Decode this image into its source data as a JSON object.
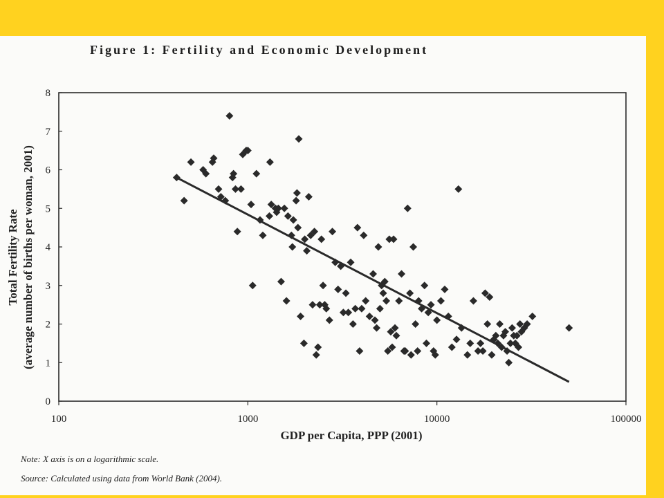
{
  "figure": {
    "title": "Figure 1: Fertility and Economic Development",
    "note": "Note: X axis is on a logarithmic scale.",
    "source": "Source: Calculated using data from World Bank (2004)."
  },
  "colors": {
    "frame_background": "#ffd21f",
    "page_background": "#fbfbf9",
    "marker": "#2a2a2a",
    "trend_line": "#2a2a2a"
  },
  "chart_data": {
    "type": "scatter",
    "title": "",
    "xlabel": "GDP per Capita, PPP (2001)",
    "ylabel_line1": "Total Fertility Rate",
    "ylabel_line2": "(average number of births per woman, 2001)",
    "x_scale": "log",
    "xlim": [
      100,
      100000
    ],
    "ylim": [
      0,
      8
    ],
    "x_ticks": [
      100,
      1000,
      10000,
      100000
    ],
    "x_tick_labels": [
      "100",
      "1000",
      "10000",
      "100000"
    ],
    "y_ticks": [
      0,
      1,
      2,
      3,
      4,
      5,
      6,
      7,
      8
    ],
    "y_tick_labels": [
      "0",
      "1",
      "2",
      "3",
      "4",
      "5",
      "6",
      "7",
      "8"
    ],
    "grid": false,
    "legend": "none",
    "marker": "diamond",
    "points": [
      [
        420,
        5.8
      ],
      [
        460,
        5.2
      ],
      [
        500,
        6.2
      ],
      [
        580,
        6.0
      ],
      [
        600,
        5.9
      ],
      [
        650,
        6.2
      ],
      [
        660,
        6.3
      ],
      [
        700,
        5.5
      ],
      [
        720,
        5.3
      ],
      [
        760,
        5.2
      ],
      [
        800,
        7.4
      ],
      [
        830,
        5.8
      ],
      [
        840,
        5.9
      ],
      [
        860,
        5.5
      ],
      [
        880,
        4.4
      ],
      [
        920,
        5.5
      ],
      [
        940,
        6.4
      ],
      [
        980,
        6.5
      ],
      [
        1000,
        6.5
      ],
      [
        1040,
        5.1
      ],
      [
        1060,
        3.0
      ],
      [
        1110,
        5.9
      ],
      [
        1160,
        4.7
      ],
      [
        1200,
        4.3
      ],
      [
        1300,
        4.8
      ],
      [
        1310,
        6.2
      ],
      [
        1330,
        5.1
      ],
      [
        1400,
        5.0
      ],
      [
        1420,
        4.9
      ],
      [
        1450,
        5.0
      ],
      [
        1500,
        3.1
      ],
      [
        1560,
        5.0
      ],
      [
        1600,
        2.6
      ],
      [
        1630,
        4.8
      ],
      [
        1700,
        4.3
      ],
      [
        1720,
        4.0
      ],
      [
        1740,
        4.7
      ],
      [
        1800,
        5.2
      ],
      [
        1820,
        5.4
      ],
      [
        1840,
        4.5
      ],
      [
        1860,
        6.8
      ],
      [
        1900,
        2.2
      ],
      [
        1980,
        1.5
      ],
      [
        2000,
        4.2
      ],
      [
        2050,
        3.9
      ],
      [
        2100,
        5.3
      ],
      [
        2150,
        4.3
      ],
      [
        2200,
        2.5
      ],
      [
        2250,
        4.4
      ],
      [
        2300,
        1.2
      ],
      [
        2350,
        1.4
      ],
      [
        2400,
        2.5
      ],
      [
        2450,
        4.2
      ],
      [
        2500,
        3.0
      ],
      [
        2550,
        2.5
      ],
      [
        2600,
        2.4
      ],
      [
        2700,
        2.1
      ],
      [
        2800,
        4.4
      ],
      [
        2900,
        3.6
      ],
      [
        3000,
        2.9
      ],
      [
        3100,
        3.5
      ],
      [
        3200,
        2.3
      ],
      [
        3300,
        2.8
      ],
      [
        3400,
        2.3
      ],
      [
        3500,
        3.6
      ],
      [
        3600,
        2.0
      ],
      [
        3700,
        2.4
      ],
      [
        3800,
        4.5
      ],
      [
        3900,
        1.3
      ],
      [
        4000,
        2.4
      ],
      [
        4100,
        4.3
      ],
      [
        4200,
        2.6
      ],
      [
        4400,
        2.2
      ],
      [
        4600,
        3.3
      ],
      [
        4700,
        2.1
      ],
      [
        4800,
        1.9
      ],
      [
        4900,
        4.0
      ],
      [
        5000,
        2.4
      ],
      [
        5100,
        3.0
      ],
      [
        5200,
        2.8
      ],
      [
        5300,
        3.1
      ],
      [
        5400,
        2.6
      ],
      [
        5500,
        1.3
      ],
      [
        5600,
        4.2
      ],
      [
        5700,
        1.8
      ],
      [
        5800,
        1.4
      ],
      [
        5900,
        4.2
      ],
      [
        6000,
        1.9
      ],
      [
        6100,
        1.7
      ],
      [
        6300,
        2.6
      ],
      [
        6500,
        3.3
      ],
      [
        6700,
        1.3
      ],
      [
        6800,
        1.3
      ],
      [
        7000,
        5.0
      ],
      [
        7200,
        2.8
      ],
      [
        7300,
        1.2
      ],
      [
        7500,
        4.0
      ],
      [
        7700,
        2.0
      ],
      [
        7900,
        1.3
      ],
      [
        8000,
        2.6
      ],
      [
        8300,
        2.4
      ],
      [
        8600,
        3.0
      ],
      [
        8800,
        1.5
      ],
      [
        9000,
        2.3
      ],
      [
        9300,
        2.5
      ],
      [
        9600,
        1.3
      ],
      [
        9800,
        1.2
      ],
      [
        10000,
        2.1
      ],
      [
        10500,
        2.6
      ],
      [
        11000,
        2.9
      ],
      [
        11500,
        2.2
      ],
      [
        12000,
        1.4
      ],
      [
        12700,
        1.6
      ],
      [
        13000,
        5.5
      ],
      [
        13500,
        1.9
      ],
      [
        14500,
        1.2
      ],
      [
        15000,
        1.5
      ],
      [
        15600,
        2.6
      ],
      [
        16500,
        1.3
      ],
      [
        17000,
        1.5
      ],
      [
        17500,
        1.3
      ],
      [
        18000,
        2.8
      ],
      [
        18500,
        2.0
      ],
      [
        19000,
        2.7
      ],
      [
        19500,
        1.2
      ],
      [
        20000,
        1.6
      ],
      [
        20500,
        1.7
      ],
      [
        21000,
        1.5
      ],
      [
        21500,
        2.0
      ],
      [
        22000,
        1.4
      ],
      [
        22500,
        1.7
      ],
      [
        23000,
        1.8
      ],
      [
        23500,
        1.3
      ],
      [
        24000,
        1.0
      ],
      [
        24500,
        1.5
      ],
      [
        25000,
        1.9
      ],
      [
        25500,
        1.7
      ],
      [
        26000,
        1.5
      ],
      [
        26500,
        1.7
      ],
      [
        27000,
        1.4
      ],
      [
        27500,
        2.0
      ],
      [
        28000,
        1.8
      ],
      [
        29000,
        1.9
      ],
      [
        30000,
        2.0
      ],
      [
        32000,
        2.2
      ],
      [
        50000,
        1.9
      ]
    ],
    "trend_line": {
      "x": [
        420,
        50000
      ],
      "y": [
        5.8,
        0.5
      ]
    }
  }
}
